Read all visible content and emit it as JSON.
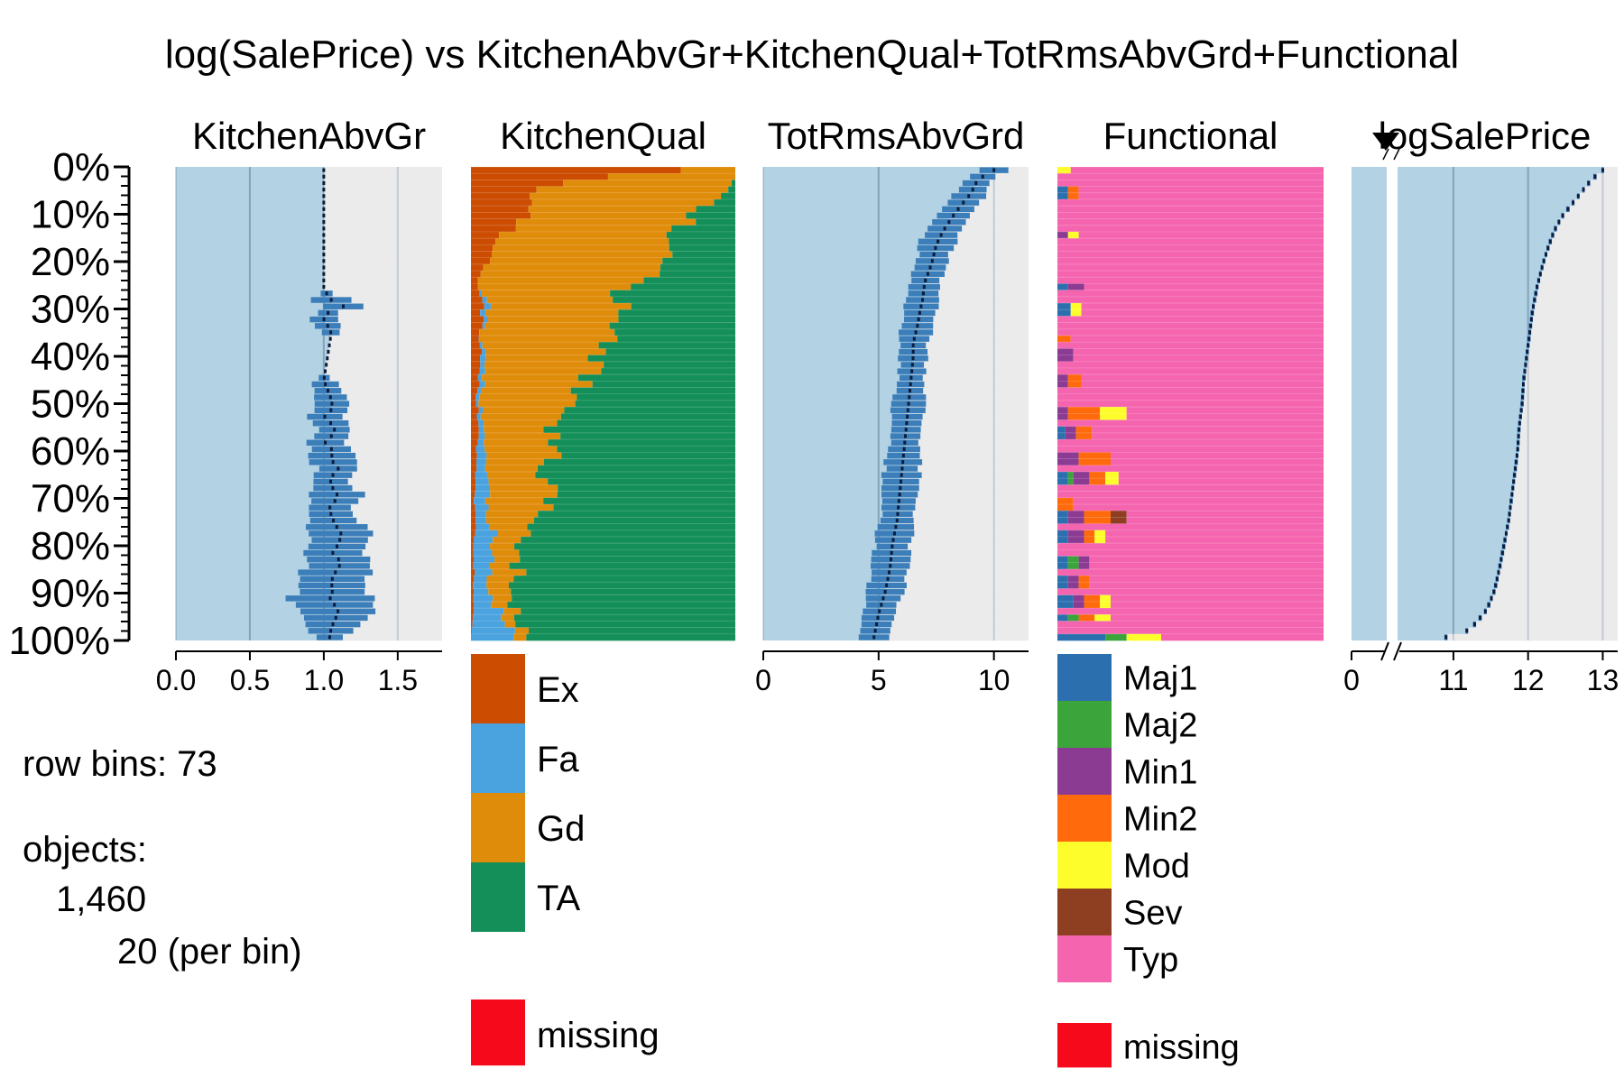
{
  "chart_data": {
    "type": "tableplot",
    "title": "log(SalePrice) vs KitchenAbvGr+KitchenQual+TotRmsAbvGrd+Functional",
    "row_axis": {
      "ticks": [
        "0%",
        "10%",
        "20%",
        "30%",
        "40%",
        "50%",
        "60%",
        "70%",
        "80%",
        "90%",
        "100%"
      ]
    },
    "info": {
      "row_bins_label": "row bins: 73",
      "objects_label": "objects:",
      "objects_total": "1,460",
      "objects_per_bin": "20 (per bin)"
    },
    "panels": [
      {
        "name": "KitchenAbvGr",
        "kind": "numeric",
        "xlim": [
          0,
          1.8
        ],
        "ticks": [
          "0.0",
          "0.5",
          "1.0",
          "1.5"
        ],
        "tick_values": [
          0,
          0.5,
          1.0,
          1.5
        ],
        "mean": [
          [
            0.0,
            1.0
          ],
          [
            0.2,
            1.0
          ],
          [
            0.26,
            1.0
          ],
          [
            0.27,
            1.05
          ],
          [
            0.28,
            1.05
          ],
          [
            0.29,
            1.15
          ],
          [
            0.3,
            1.04
          ],
          [
            0.32,
            1.0
          ],
          [
            0.34,
            1.04
          ],
          [
            0.35,
            1.05
          ],
          [
            0.45,
            1.0
          ],
          [
            0.49,
            1.05
          ],
          [
            0.51,
            1.06
          ],
          [
            0.53,
            1.0
          ],
          [
            0.55,
            1.08
          ],
          [
            0.57,
            1.05
          ],
          [
            0.58,
            1.0
          ],
          [
            0.6,
            1.06
          ],
          [
            0.62,
            1.05
          ],
          [
            0.64,
            1.1
          ],
          [
            0.66,
            1.04
          ],
          [
            0.68,
            1.06
          ],
          [
            0.7,
            1.1
          ],
          [
            0.72,
            1.04
          ],
          [
            0.74,
            1.05
          ],
          [
            0.76,
            1.08
          ],
          [
            0.78,
            1.12
          ],
          [
            0.8,
            1.1
          ],
          [
            0.82,
            1.06
          ],
          [
            0.84,
            1.12
          ],
          [
            0.86,
            1.08
          ],
          [
            0.88,
            1.05
          ],
          [
            0.9,
            1.06
          ],
          [
            0.92,
            1.04
          ],
          [
            0.94,
            1.1
          ],
          [
            0.96,
            1.08
          ],
          [
            0.98,
            1.05
          ],
          [
            1.0,
            1.04
          ]
        ],
        "spread": [
          [
            0.0,
            0
          ],
          [
            0.26,
            0
          ],
          [
            0.27,
            0.22
          ],
          [
            0.29,
            0.3
          ],
          [
            0.3,
            0.1
          ],
          [
            0.32,
            0.2
          ],
          [
            0.34,
            0.2
          ],
          [
            0.36,
            0
          ],
          [
            0.44,
            0
          ],
          [
            0.45,
            0.18
          ],
          [
            0.49,
            0.22
          ],
          [
            0.51,
            0.18
          ],
          [
            0.53,
            0.25
          ],
          [
            0.55,
            0.2
          ],
          [
            0.57,
            0.2
          ],
          [
            0.58,
            0.25
          ],
          [
            0.6,
            0.3
          ],
          [
            0.62,
            0.3
          ],
          [
            0.66,
            0.25
          ],
          [
            0.68,
            0.3
          ],
          [
            0.7,
            0.45
          ],
          [
            0.72,
            0.25
          ],
          [
            0.74,
            0.3
          ],
          [
            0.76,
            0.35
          ],
          [
            0.78,
            0.45
          ],
          [
            0.8,
            0.4
          ],
          [
            0.82,
            0.45
          ],
          [
            0.84,
            0.5
          ],
          [
            0.86,
            0.45
          ],
          [
            0.88,
            0.55
          ],
          [
            0.9,
            0.5
          ],
          [
            0.92,
            0.6
          ],
          [
            0.94,
            0.55
          ],
          [
            0.96,
            0.45
          ],
          [
            0.98,
            0.35
          ],
          [
            1.0,
            0.2
          ]
        ]
      },
      {
        "name": "KitchenQual",
        "kind": "categorical",
        "levels": [
          "Ex",
          "Fa",
          "Gd",
          "TA"
        ],
        "colors": [
          "#CC4C02",
          "#4AA3DF",
          "#E08C0B",
          "#148F5A"
        ],
        "missing_label": "missing",
        "missing_color": "#F7091C",
        "proportions": [
          [
            0.0,
            0.8,
            0.0,
            0.2,
            0.0
          ],
          [
            0.02,
            0.35,
            0.0,
            0.65,
            0.0
          ],
          [
            0.05,
            0.25,
            0.0,
            0.7,
            0.05
          ],
          [
            0.1,
            0.2,
            0.0,
            0.62,
            0.18
          ],
          [
            0.15,
            0.1,
            0.0,
            0.65,
            0.25
          ],
          [
            0.2,
            0.05,
            0.0,
            0.7,
            0.25
          ],
          [
            0.25,
            0.02,
            0.0,
            0.6,
            0.38
          ],
          [
            0.3,
            0.05,
            0.03,
            0.5,
            0.42
          ],
          [
            0.35,
            0.03,
            0.0,
            0.55,
            0.42
          ],
          [
            0.4,
            0.04,
            0.02,
            0.4,
            0.54
          ],
          [
            0.45,
            0.03,
            0.02,
            0.4,
            0.55
          ],
          [
            0.5,
            0.02,
            0.01,
            0.35,
            0.62
          ],
          [
            0.55,
            0.03,
            0.02,
            0.25,
            0.7
          ],
          [
            0.6,
            0.02,
            0.03,
            0.3,
            0.65
          ],
          [
            0.65,
            0.02,
            0.04,
            0.2,
            0.74
          ],
          [
            0.7,
            0.01,
            0.05,
            0.25,
            0.69
          ],
          [
            0.75,
            0.02,
            0.04,
            0.15,
            0.79
          ],
          [
            0.8,
            0.01,
            0.08,
            0.1,
            0.81
          ],
          [
            0.85,
            0.01,
            0.06,
            0.1,
            0.83
          ],
          [
            0.9,
            0.01,
            0.05,
            0.08,
            0.86
          ],
          [
            0.95,
            0.01,
            0.1,
            0.05,
            0.84
          ],
          [
            1.0,
            0.0,
            0.15,
            0.05,
            0.8
          ]
        ]
      },
      {
        "name": "TotRmsAbvGrd",
        "kind": "numeric",
        "xlim": [
          0,
          11.5
        ],
        "ticks": [
          "0",
          "5",
          "10"
        ],
        "tick_values": [
          0,
          5,
          10
        ],
        "mean": [
          [
            0.0,
            10.0
          ],
          [
            0.02,
            9.3
          ],
          [
            0.05,
            9.0
          ],
          [
            0.08,
            8.5
          ],
          [
            0.1,
            8.2
          ],
          [
            0.13,
            7.8
          ],
          [
            0.16,
            7.5
          ],
          [
            0.2,
            7.3
          ],
          [
            0.24,
            7.0
          ],
          [
            0.28,
            6.9
          ],
          [
            0.3,
            6.8
          ],
          [
            0.33,
            6.7
          ],
          [
            0.37,
            6.5
          ],
          [
            0.4,
            6.5
          ],
          [
            0.45,
            6.4
          ],
          [
            0.5,
            6.3
          ],
          [
            0.55,
            6.2
          ],
          [
            0.6,
            6.1
          ],
          [
            0.65,
            6.0
          ],
          [
            0.7,
            5.9
          ],
          [
            0.75,
            5.8
          ],
          [
            0.8,
            5.6
          ],
          [
            0.85,
            5.5
          ],
          [
            0.9,
            5.3
          ],
          [
            0.95,
            5.0
          ],
          [
            1.0,
            4.8
          ]
        ],
        "spread": [
          [
            0.0,
            1.5
          ],
          [
            0.02,
            1.2
          ],
          [
            0.05,
            1.3
          ],
          [
            0.1,
            1.4
          ],
          [
            0.15,
            1.5
          ],
          [
            0.2,
            1.3
          ],
          [
            0.25,
            1.2
          ],
          [
            0.3,
            1.6
          ],
          [
            0.35,
            1.3
          ],
          [
            0.4,
            1.2
          ],
          [
            0.45,
            1.2
          ],
          [
            0.5,
            1.4
          ],
          [
            0.55,
            1.3
          ],
          [
            0.6,
            1.4
          ],
          [
            0.65,
            1.5
          ],
          [
            0.7,
            1.5
          ],
          [
            0.75,
            1.5
          ],
          [
            0.8,
            1.5
          ],
          [
            0.85,
            1.5
          ],
          [
            0.9,
            1.6
          ],
          [
            0.95,
            1.3
          ],
          [
            1.0,
            1.2
          ]
        ]
      },
      {
        "name": "Functional",
        "kind": "categorical",
        "levels": [
          "Maj1",
          "Maj2",
          "Min1",
          "Min2",
          "Mod",
          "Sev",
          "Typ"
        ],
        "colors": [
          "#2C6FAE",
          "#3BA43B",
          "#8C3B93",
          "#FE6A0C",
          "#FDFD2B",
          "#8E3F21",
          "#F565AF"
        ],
        "missing_label": "missing",
        "missing_color": "#F7091C",
        "special": [
          [
            0.0,
            0,
            0,
            0,
            0,
            0.05,
            0
          ],
          [
            0.05,
            0.04,
            0,
            0,
            0.04,
            0,
            0
          ],
          [
            0.14,
            0,
            0,
            0.04,
            0,
            0.04,
            0
          ],
          [
            0.25,
            0.04,
            0,
            0.06,
            0,
            0,
            0
          ],
          [
            0.3,
            0.05,
            0,
            0,
            0,
            0.04,
            0
          ],
          [
            0.36,
            0,
            0,
            0,
            0.05,
            0,
            0
          ],
          [
            0.4,
            0,
            0,
            0.06,
            0,
            0,
            0
          ],
          [
            0.45,
            0,
            0,
            0.04,
            0.05,
            0,
            0
          ],
          [
            0.52,
            0,
            0,
            0.04,
            0.12,
            0.1,
            0
          ],
          [
            0.56,
            0.03,
            0,
            0.04,
            0.06,
            0,
            0
          ],
          [
            0.62,
            0,
            0,
            0.08,
            0.12,
            0,
            0
          ],
          [
            0.66,
            0.04,
            0.02,
            0.06,
            0.06,
            0.05,
            0
          ],
          [
            0.72,
            0,
            0,
            0,
            0.06,
            0,
            0
          ],
          [
            0.74,
            0.04,
            0,
            0.06,
            0.1,
            0,
            0.06
          ],
          [
            0.78,
            0.04,
            0,
            0.06,
            0.04,
            0.04,
            0
          ],
          [
            0.84,
            0.04,
            0.04,
            0.04,
            0,
            0,
            0
          ],
          [
            0.88,
            0.04,
            0,
            0.04,
            0.04,
            0,
            0
          ],
          [
            0.92,
            0.06,
            0,
            0.04,
            0.06,
            0.04,
            0
          ],
          [
            0.96,
            0.04,
            0.04,
            0,
            0.06,
            0.06,
            0
          ],
          [
            1.0,
            0.18,
            0.08,
            0,
            0,
            0.13,
            0
          ]
        ]
      },
      {
        "name": "logSalePrice",
        "kind": "numeric-broken-axis",
        "xlim": [
          10.3,
          13.2
        ],
        "ticks": [
          "0",
          "11",
          "12",
          "13"
        ],
        "tick_values": [
          0,
          11,
          12,
          13
        ],
        "mean": [
          [
            0.0,
            13.0
          ],
          [
            0.02,
            12.85
          ],
          [
            0.04,
            12.75
          ],
          [
            0.06,
            12.65
          ],
          [
            0.08,
            12.55
          ],
          [
            0.1,
            12.45
          ],
          [
            0.13,
            12.35
          ],
          [
            0.16,
            12.28
          ],
          [
            0.2,
            12.2
          ],
          [
            0.25,
            12.12
          ],
          [
            0.3,
            12.06
          ],
          [
            0.35,
            12.02
          ],
          [
            0.4,
            11.98
          ],
          [
            0.45,
            11.94
          ],
          [
            0.5,
            11.92
          ],
          [
            0.55,
            11.88
          ],
          [
            0.6,
            11.86
          ],
          [
            0.65,
            11.82
          ],
          [
            0.7,
            11.78
          ],
          [
            0.75,
            11.74
          ],
          [
            0.8,
            11.68
          ],
          [
            0.85,
            11.62
          ],
          [
            0.9,
            11.55
          ],
          [
            0.94,
            11.45
          ],
          [
            0.97,
            11.3
          ],
          [
            0.99,
            11.15
          ],
          [
            1.0,
            10.9
          ]
        ]
      }
    ]
  }
}
